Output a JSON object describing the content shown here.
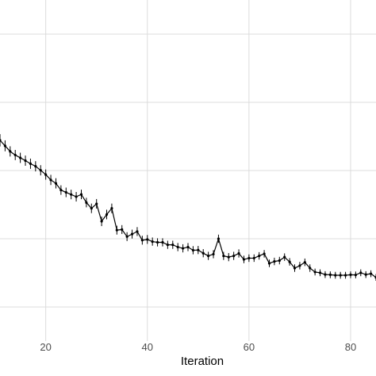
{
  "chart_data": {
    "type": "line",
    "title": "",
    "xlabel": "Iteration",
    "ylabel": "",
    "xlim": [
      11,
      85
    ],
    "ylim": [
      0,
      1
    ],
    "xticks": [
      20,
      40,
      60,
      80
    ],
    "yticks": [
      0.1,
      0.3,
      0.5,
      0.7,
      0.9
    ],
    "grid": true,
    "legend": "none",
    "series": [
      {
        "color": "#000000",
        "x": [
          11,
          12,
          13,
          14,
          15,
          16,
          17,
          18,
          19,
          20,
          21,
          22,
          23,
          24,
          25,
          26,
          27,
          28,
          29,
          30,
          31,
          32,
          33,
          34,
          35,
          36,
          37,
          38,
          39,
          40,
          41,
          42,
          43,
          44,
          45,
          46,
          47,
          48,
          49,
          50,
          51,
          52,
          53,
          54,
          55,
          56,
          57,
          58,
          59,
          60,
          61,
          62,
          63,
          64,
          65,
          66,
          67,
          68,
          69,
          70,
          71,
          72,
          73,
          74,
          75,
          76,
          77,
          78,
          79,
          80,
          81,
          82,
          83,
          84,
          85
        ],
        "y": [
          0.5887,
          0.5725,
          0.5561,
          0.5455,
          0.5373,
          0.529,
          0.52,
          0.5125,
          0.5008,
          0.4882,
          0.4725,
          0.4625,
          0.4428,
          0.436,
          0.4298,
          0.4232,
          0.43,
          0.4062,
          0.3892,
          0.4025,
          0.3511,
          0.3711,
          0.3892,
          0.3253,
          0.327,
          0.3063,
          0.3137,
          0.3212,
          0.2958,
          0.298,
          0.2917,
          0.2895,
          0.2895,
          0.2823,
          0.2823,
          0.2756,
          0.272,
          0.2756,
          0.2664,
          0.267,
          0.2577,
          0.2498,
          0.2548,
          0.3001,
          0.2498,
          0.2462,
          0.2498,
          0.257,
          0.2394,
          0.2432,
          0.2432,
          0.2498,
          0.256,
          0.228,
          0.2335,
          0.236,
          0.2462,
          0.2323,
          0.214,
          0.2211,
          0.231,
          0.214,
          0.2025,
          0.2003,
          0.195,
          0.1944,
          0.193,
          0.193,
          0.193,
          0.1944,
          0.194,
          0.2003,
          0.195,
          0.1975,
          0.1866
        ],
        "err": [
          0.018,
          0.016,
          0.015,
          0.015,
          0.015,
          0.015,
          0.015,
          0.015,
          0.015,
          0.015,
          0.015,
          0.015,
          0.014,
          0.014,
          0.014,
          0.014,
          0.014,
          0.014,
          0.014,
          0.014,
          0.014,
          0.014,
          0.014,
          0.013,
          0.013,
          0.013,
          0.013,
          0.013,
          0.013,
          0.013,
          0.012,
          0.012,
          0.012,
          0.012,
          0.012,
          0.012,
          0.012,
          0.012,
          0.012,
          0.012,
          0.012,
          0.012,
          0.012,
          0.012,
          0.012,
          0.012,
          0.012,
          0.012,
          0.011,
          0.011,
          0.011,
          0.011,
          0.011,
          0.011,
          0.011,
          0.011,
          0.011,
          0.011,
          0.011,
          0.011,
          0.011,
          0.011,
          0.01,
          0.01,
          0.01,
          0.01,
          0.01,
          0.01,
          0.01,
          0.01,
          0.01,
          0.01,
          0.01,
          0.01,
          0.01
        ]
      }
    ]
  }
}
